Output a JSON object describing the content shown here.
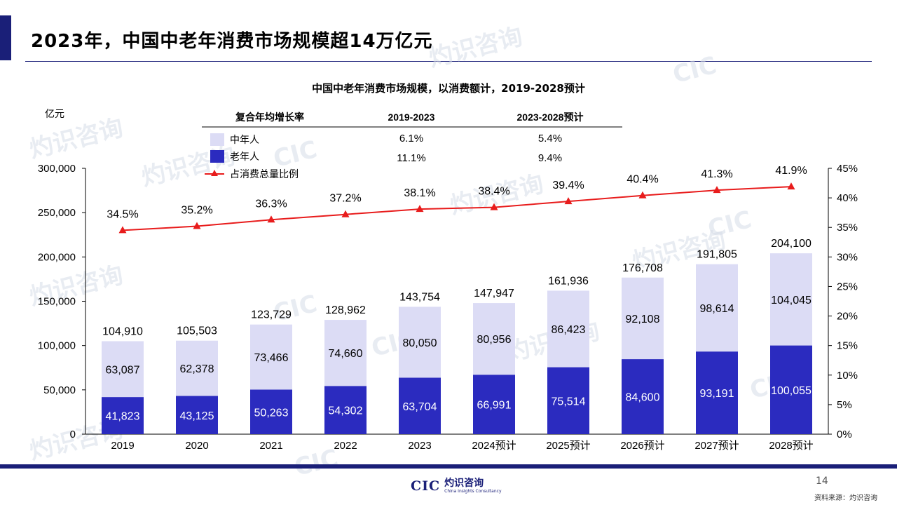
{
  "page": {
    "title": "2023年，中国中老年消费市场规模超14万亿元",
    "page_number": "14",
    "source": "资料来源：灼识咨询",
    "logo": {
      "short": "CIC",
      "name": "灼识咨询",
      "tagline": "China Insights Consultancy"
    },
    "watermark": {
      "short": "CIC",
      "name": "灼识咨询",
      "tagline": "China Insights Consultancy"
    },
    "colors": {
      "accent": "#1a1f78",
      "middle_aged": "#dcdcf5",
      "elderly": "#2b2bbf",
      "ratio_line": "#e81c1c"
    }
  },
  "chart_data": {
    "type": "bar",
    "title": "中国中老年消费市场规模，以消费额计，2019-2028预计",
    "ylabel": "亿元",
    "ylim": [
      0,
      300000
    ],
    "y_ticks": [
      "0",
      "50,000",
      "100,000",
      "150,000",
      "200,000",
      "250,000",
      "300,000"
    ],
    "y2lim": [
      0,
      45
    ],
    "y2_ticks": [
      "0%",
      "5%",
      "10%",
      "15%",
      "20%",
      "25%",
      "30%",
      "35%",
      "40%",
      "45%"
    ],
    "categories": [
      "2019",
      "2020",
      "2021",
      "2022",
      "2023",
      "2024预计",
      "2025预计",
      "2026预计",
      "2027预计",
      "2028预计"
    ],
    "series": [
      {
        "name": "老年人",
        "values": [
          41823,
          43125,
          50263,
          54302,
          63704,
          66991,
          75514,
          84600,
          93191,
          100055
        ],
        "labels": [
          "41,823",
          "43,125",
          "50,263",
          "54,302",
          "63,704",
          "66,991",
          "75,514",
          "84,600",
          "93,191",
          "100,055"
        ]
      },
      {
        "name": "中年人",
        "values": [
          63087,
          62378,
          73466,
          74660,
          80050,
          80956,
          86423,
          92108,
          98614,
          104045
        ],
        "labels": [
          "63,087",
          "62,378",
          "73,466",
          "74,660",
          "80,050",
          "80,956",
          "86,423",
          "92,108",
          "98,614",
          "104,045"
        ]
      }
    ],
    "totals": [
      104910,
      105503,
      123729,
      128962,
      143754,
      147947,
      161936,
      176708,
      191805,
      204100
    ],
    "total_labels": [
      "104,910",
      "105,503",
      "123,729",
      "128,962",
      "143,754",
      "147,947",
      "161,936",
      "176,708",
      "191,805",
      "204,100"
    ],
    "line": {
      "name": "占消费总量比例",
      "values": [
        34.5,
        35.2,
        36.3,
        37.2,
        38.1,
        38.4,
        39.4,
        40.4,
        41.3,
        41.9
      ],
      "labels": [
        "34.5%",
        "35.2%",
        "36.3%",
        "37.2%",
        "38.1%",
        "38.4%",
        "39.4%",
        "40.4%",
        "41.3%",
        "41.9%"
      ]
    },
    "cagr_table": {
      "header": [
        "复合年均增长率",
        "2019-2023",
        "2023-2028预计"
      ],
      "rows": [
        {
          "name": "中年人",
          "values": [
            "6.1%",
            "5.4%"
          ]
        },
        {
          "name": "老年人",
          "values": [
            "11.1%",
            "9.4%"
          ]
        }
      ]
    },
    "legend_position": "top-left",
    "grid": false
  }
}
